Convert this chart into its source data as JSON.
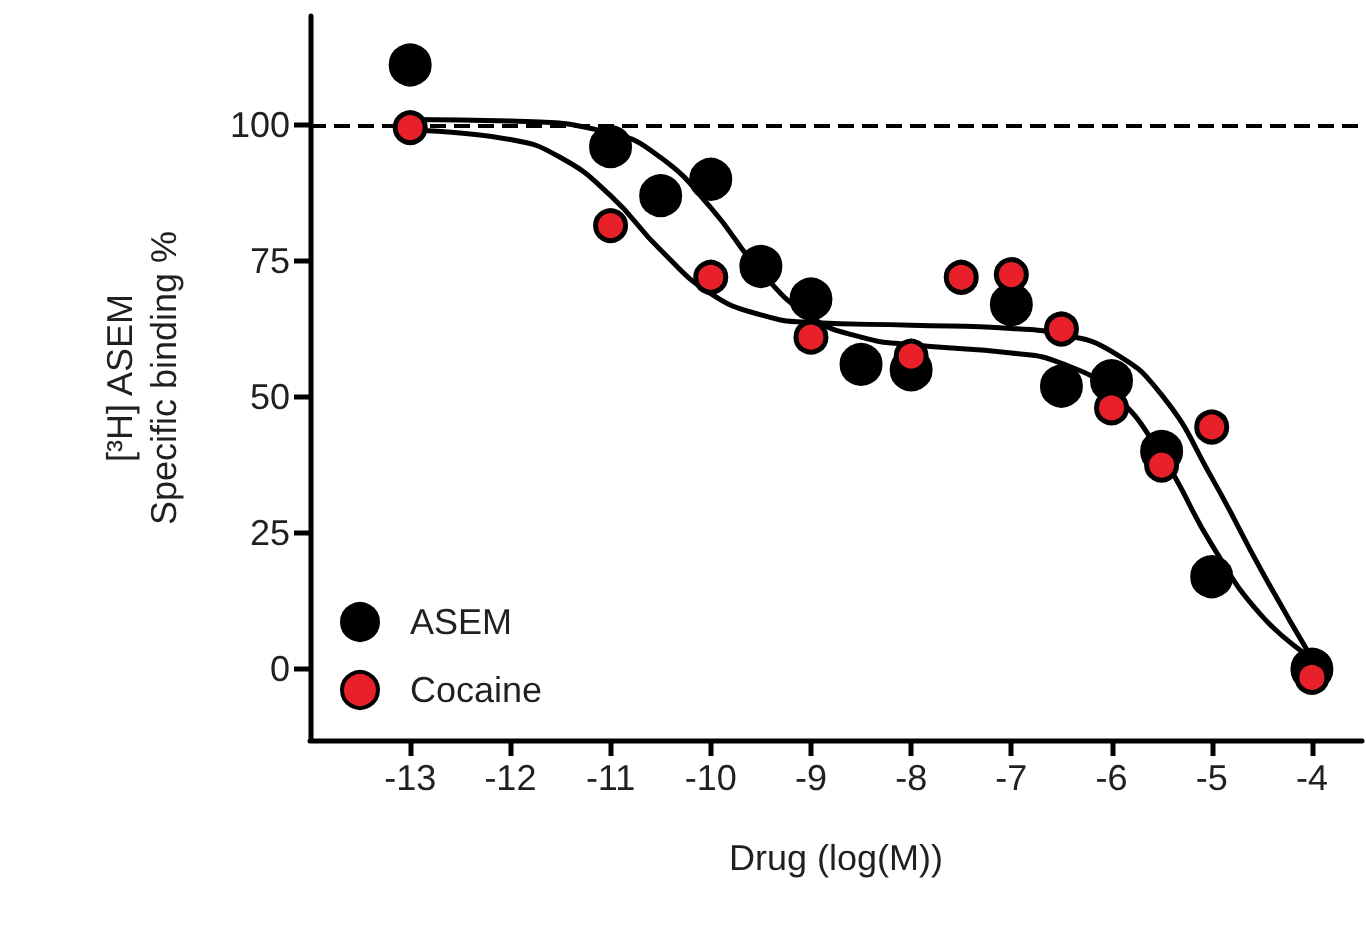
{
  "chart_data": {
    "type": "scatter",
    "xlabel": "Drug (log(M))",
    "ylabel": "[³H] ASEM\nSpecific binding %",
    "xlim": [
      -14,
      -3.5
    ],
    "xticks": [
      -13,
      -12,
      -11,
      -10,
      -9,
      -8,
      -7,
      -6,
      -5,
      -4
    ],
    "ylim": [
      -13,
      120
    ],
    "yticks": [
      0,
      25,
      50,
      75,
      100
    ],
    "grid": false,
    "legend": "bottom left",
    "marker": "circle",
    "ref_lines": [
      {
        "axis": "y",
        "value": 100,
        "line_style": "dashed",
        "color": "#000000"
      }
    ],
    "series": [
      {
        "name": "ASEM",
        "color": "#000000",
        "x": [
          -13,
          -11,
          -10.5,
          -10,
          -9.5,
          -9,
          -8.5,
          -8,
          -7,
          -6.5,
          -6,
          -5.5,
          -5,
          -4
        ],
        "values": [
          111,
          96,
          87,
          90,
          74,
          68,
          56,
          55,
          67,
          52,
          53,
          40,
          17,
          0
        ]
      },
      {
        "name": "Cocaine",
        "color": "#e8202a",
        "x": [
          -13,
          -11,
          -10,
          -9,
          -8,
          -7.5,
          -7,
          -6.5,
          -6,
          -5.5,
          -5,
          -4
        ],
        "values": [
          99.5,
          81.5,
          72,
          61,
          57.5,
          72,
          72.5,
          62.5,
          48,
          37.5,
          44.5,
          -1.5
        ]
      },
      {
        "type": "line",
        "color": "#000000",
        "marker": "none",
        "x": [
          -13,
          -12,
          -11,
          -10.5,
          -10,
          -9.5,
          -9,
          -8.5,
          -8,
          -7,
          -6.5,
          -6,
          -5.5,
          -5,
          -4.5,
          -4
        ],
        "values": [
          101,
          100.7,
          98.5,
          94,
          84.8,
          73,
          64.7,
          61,
          59.6,
          58.1,
          56.2,
          50.9,
          39.3,
          22.9,
          9.8,
          2
        ]
      },
      {
        "type": "line",
        "color": "#000000",
        "marker": "none",
        "x": [
          -13,
          -12,
          -11.5,
          -11,
          -10.5,
          -10,
          -9.5,
          -9,
          -8,
          -7,
          -6.5,
          -6,
          -5.5,
          -5,
          -4.5,
          -4
        ],
        "values": [
          99,
          97.3,
          94,
          87,
          77,
          69,
          65.1,
          63.7,
          63.2,
          62.6,
          61.5,
          58.4,
          50.4,
          35.2,
          18,
          2
        ]
      }
    ]
  }
}
